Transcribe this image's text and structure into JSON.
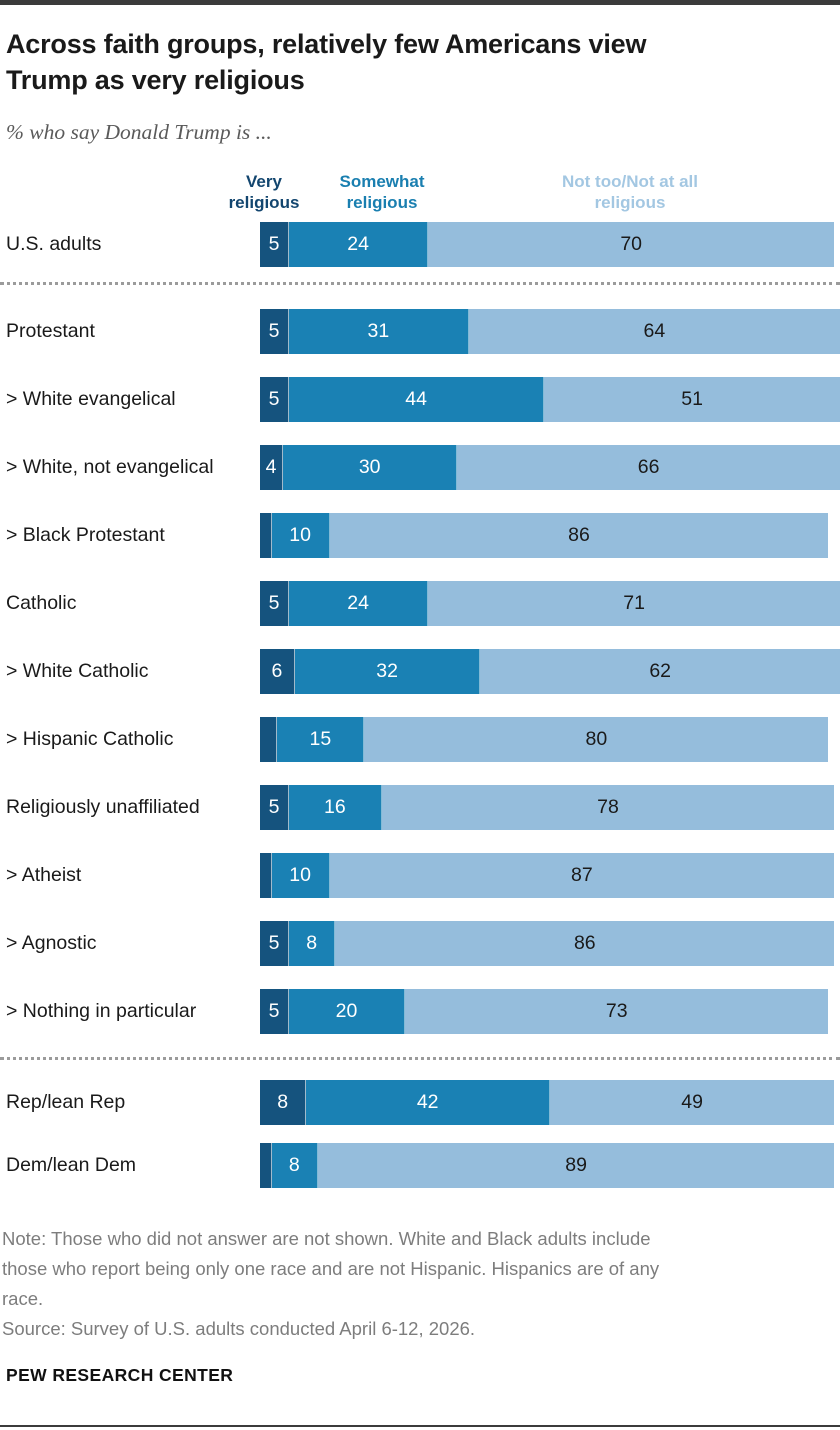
{
  "header": {
    "title_line1": "Across faith groups, relatively few Americans view",
    "title_line2": "Trump as very religious",
    "subtitle": "% who say Donald Trump is ..."
  },
  "legend": {
    "very": "Very religious",
    "somewhat": "Somewhat religious",
    "nottoo": "Not too/Not at all religious"
  },
  "colors": {
    "very": "#15537e",
    "somewhat": "#1a81b4",
    "nottoo": "#95bddc",
    "legend_very": "#13466f",
    "legend_somewhat": "#1a7fb0",
    "legend_nottoo": "#a3c7e2"
  },
  "chart_data": {
    "type": "bar",
    "stacked": true,
    "orientation": "horizontal",
    "unit": "%",
    "axis_range": [
      0,
      100
    ],
    "grid": false,
    "legend_position": "top",
    "series_names": [
      "Very religious",
      "Somewhat religious",
      "Not too/Not at all religious"
    ],
    "categories": [
      "U.S. adults",
      "Protestant",
      "> White evangelical",
      "> White, not evangelical",
      "> Black Protestant",
      "Catholic",
      "> White Catholic",
      "> Hispanic Catholic",
      "Religiously unaffiliated",
      "> Atheist",
      "> Agnostic",
      "> Nothing in particular",
      "Rep/lean Rep",
      "Dem/lean Dem"
    ],
    "rows": [
      {
        "label": "U.S. adults",
        "values": [
          5,
          24,
          70
        ],
        "value_labels": [
          "5",
          "24",
          "70"
        ],
        "divider_after": true,
        "group": "all"
      },
      {
        "label": "Protestant",
        "values": [
          5,
          31,
          64
        ],
        "value_labels": [
          "5",
          "31",
          "64"
        ],
        "group": "religion"
      },
      {
        "label": "> White evangelical",
        "values": [
          5,
          44,
          51
        ],
        "value_labels": [
          "5",
          "44",
          "51"
        ],
        "group": "religion"
      },
      {
        "label": "> White, not evangelical",
        "values": [
          4,
          30,
          66
        ],
        "value_labels": [
          "4",
          "30",
          "66"
        ],
        "group": "religion"
      },
      {
        "label": "> Black Protestant",
        "values": [
          2,
          10,
          86
        ],
        "value_labels": [
          "",
          "10",
          "86"
        ],
        "group": "religion"
      },
      {
        "label": "Catholic",
        "values": [
          5,
          24,
          71
        ],
        "value_labels": [
          "5",
          "24",
          "71"
        ],
        "group": "religion"
      },
      {
        "label": "> White Catholic",
        "values": [
          6,
          32,
          62
        ],
        "value_labels": [
          "6",
          "32",
          "62"
        ],
        "group": "religion"
      },
      {
        "label": "> Hispanic Catholic",
        "values": [
          3,
          15,
          80
        ],
        "value_labels": [
          "",
          "15",
          "80"
        ],
        "group": "religion"
      },
      {
        "label": "Religiously unaffiliated",
        "values": [
          5,
          16,
          78
        ],
        "value_labels": [
          "5",
          "16",
          "78"
        ],
        "group": "religion"
      },
      {
        "label": "> Atheist",
        "values": [
          2,
          10,
          87
        ],
        "value_labels": [
          "",
          "10",
          "87"
        ],
        "group": "religion"
      },
      {
        "label": "> Agnostic",
        "values": [
          5,
          8,
          86
        ],
        "value_labels": [
          "5",
          "8",
          "86"
        ],
        "group": "religion"
      },
      {
        "label": "> Nothing in particular",
        "values": [
          5,
          20,
          73
        ],
        "value_labels": [
          "5",
          "20",
          "73"
        ],
        "divider_after": true,
        "group": "religion"
      },
      {
        "label": "Rep/lean Rep",
        "values": [
          8,
          42,
          49
        ],
        "value_labels": [
          "8",
          "42",
          "49"
        ],
        "group": "party"
      },
      {
        "label": "Dem/lean Dem",
        "values": [
          2,
          8,
          89
        ],
        "value_labels": [
          "",
          "8",
          "89"
        ],
        "group": "party"
      }
    ]
  },
  "footer": {
    "note_lines": [
      "Note: Those who did not answer are not shown. White and Black adults include",
      "those who report being only one race and are not Hispanic. Hispanics are of any",
      "race."
    ],
    "source": "Source: Survey of U.S. adults conducted April 6-12, 2026.",
    "brand": "PEW RESEARCH CENTER"
  }
}
